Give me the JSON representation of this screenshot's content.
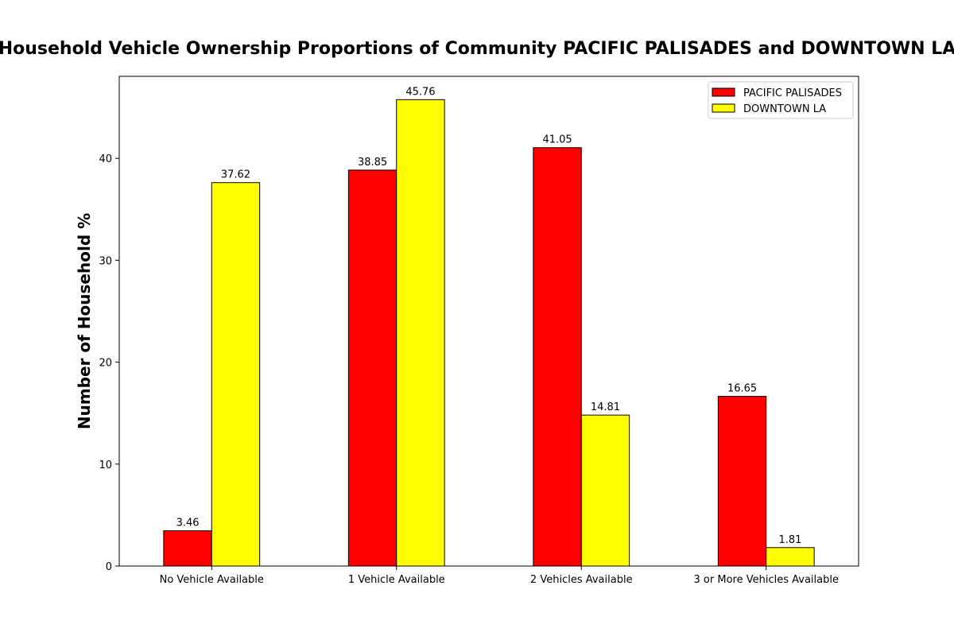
{
  "chart_data": {
    "type": "bar",
    "title": "Household Vehicle Ownership Proportions of Community PACIFIC PALISADES and DOWNTOWN LA",
    "xlabel": "",
    "ylabel": "Number of Household %",
    "categories": [
      "No Vehicle Available",
      "1 Vehicle Available",
      "2 Vehicles Available",
      "3 or More Vehicles Available"
    ],
    "series": [
      {
        "name": "PACIFIC PALISADES",
        "color": "#ff0000",
        "values": [
          3.46,
          38.85,
          41.05,
          16.65
        ]
      },
      {
        "name": "DOWNTOWN LA",
        "color": "#ffff00",
        "values": [
          37.62,
          45.76,
          14.81,
          1.81
        ]
      }
    ],
    "ylim": [
      0,
      48.05
    ],
    "yticks": [
      0,
      10,
      20,
      30,
      40
    ],
    "grid": false,
    "legend": "top-right"
  }
}
